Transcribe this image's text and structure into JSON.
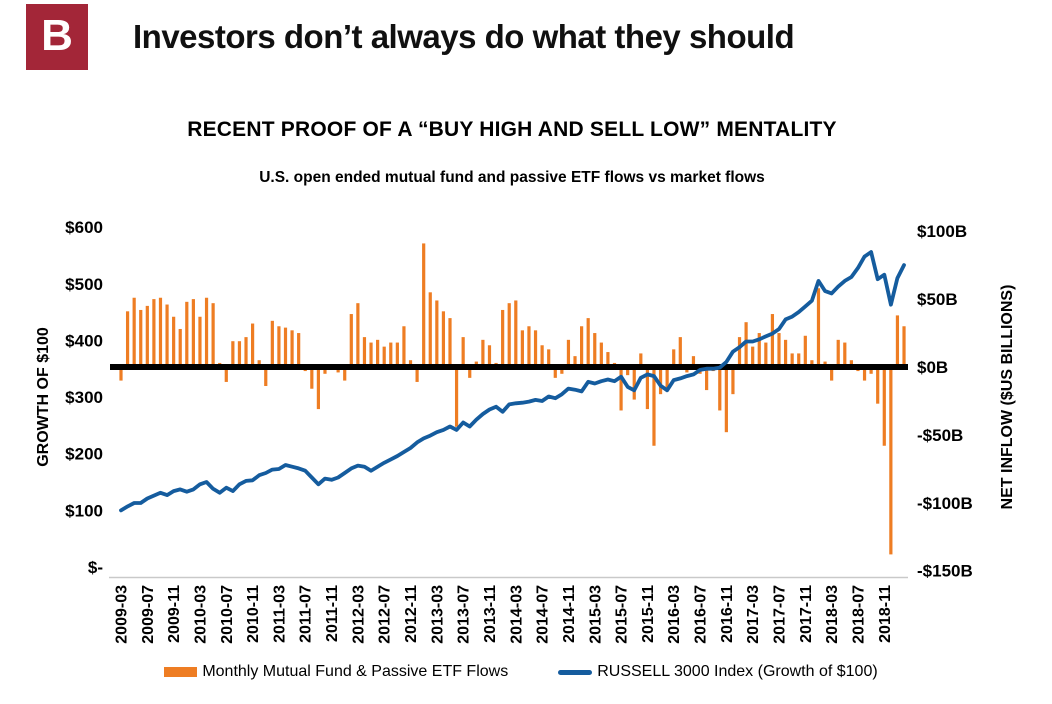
{
  "header": {
    "logo_letter": "B",
    "title": "Investors don’t always do what they should"
  },
  "colors": {
    "logo_red": "#A32638",
    "bar_orange": "#EE7D23",
    "line_blue": "#155C9E",
    "zero_line_black": "#000000",
    "axis_line_gray": "#C9C9C9",
    "text_black": "#000000"
  },
  "chart_data": {
    "type": "combo-bar-line-dual-axis",
    "title": "RECENT PROOF OF A “BUY HIGH AND SELL LOW” MENTALITY",
    "subtitle": "U.S. open ended mutual fund and passive ETF flows vs market flows",
    "x_start": "2009-03",
    "x_frequency": "monthly",
    "n_points": 120,
    "x_axis": {
      "tick_every_n_months": 4,
      "tick_labels": [
        "2009-03",
        "2009-07",
        "2009-11",
        "2010-03",
        "2010-07",
        "2010-11",
        "2011-03",
        "2011-07",
        "2011-11",
        "2012-03",
        "2012-07",
        "2012-11",
        "2013-03",
        "2013-07",
        "2013-11",
        "2014-03",
        "2014-07",
        "2014-11",
        "2015-03",
        "2015-07",
        "2015-11",
        "2016-03",
        "2016-07",
        "2016-11",
        "2017-03",
        "2017-07",
        "2017-11",
        "2018-03",
        "2018-07",
        "2018-11"
      ]
    },
    "left_axis": {
      "title": "GROWTH OF $100",
      "range": [
        0,
        600
      ],
      "tick_labels": [
        "$600",
        "$500",
        "$400",
        "$300",
        "$200",
        "$100",
        "$-"
      ],
      "tick_values": [
        600,
        500,
        400,
        300,
        200,
        100,
        0
      ]
    },
    "right_axis": {
      "title": "NET INFLOW ($US BILLIONS)",
      "range": [
        -150,
        100
      ],
      "tick_labels": [
        "$100B",
        "$50B",
        "$0B",
        "-$50B",
        "-$100B",
        "-$150B"
      ],
      "tick_values": [
        100,
        50,
        0,
        -50,
        -100,
        -150
      ]
    },
    "zero_line_right_axis_value": 0,
    "legend_position": "bottom",
    "series": [
      {
        "name": "Monthly Mutual Fund & Passive ETF Flows",
        "type": "bar",
        "axis": "right",
        "color": "#EE7D23",
        "values": [
          -10,
          41,
          51,
          42,
          45,
          50,
          51,
          46,
          37,
          28,
          48,
          50,
          37,
          51,
          47,
          3,
          -11,
          19,
          19,
          22,
          32,
          5,
          -14,
          34,
          30,
          29,
          27,
          25,
          -3,
          -16,
          -31,
          -5,
          2,
          -4,
          -10,
          39,
          47,
          22,
          18,
          20,
          15,
          18,
          18,
          30,
          5,
          -11,
          91,
          55,
          49,
          41,
          36,
          -44,
          22,
          -8,
          4,
          20,
          16,
          3,
          42,
          47,
          49,
          27,
          30,
          27,
          16,
          13,
          -8,
          -5,
          20,
          8,
          30,
          36,
          25,
          18,
          11,
          3,
          -32,
          -6,
          -24,
          10,
          -31,
          -58,
          -20,
          -18,
          13,
          22,
          -4,
          8,
          -5,
          -17,
          -3,
          -32,
          -48,
          -20,
          22,
          33,
          15,
          25,
          18,
          39,
          25,
          20,
          10,
          10,
          23,
          5,
          58,
          4,
          -10,
          20,
          18,
          5,
          -3,
          -10,
          -5,
          -27,
          -58,
          -138,
          38,
          30
        ]
      },
      {
        "name": "RUSSELL 3000 Index (Growth of $100)",
        "type": "line",
        "axis": "left",
        "color": "#155C9E",
        "values": [
          100,
          107,
          113,
          113,
          121,
          126,
          131,
          127,
          134,
          137,
          133,
          137,
          146,
          150,
          138,
          131,
          140,
          134,
          146,
          152,
          153,
          162,
          166,
          172,
          173,
          180,
          177,
          174,
          170,
          158,
          146,
          156,
          154,
          158,
          166,
          174,
          179,
          177,
          170,
          177,
          184,
          190,
          196,
          203,
          210,
          220,
          227,
          232,
          238,
          242,
          248,
          242,
          255,
          248,
          260,
          270,
          278,
          283,
          274,
          287,
          289,
          290,
          292,
          295,
          293,
          301,
          298,
          305,
          315,
          313,
          310,
          327,
          324,
          328,
          331,
          328,
          336,
          318,
          312,
          334,
          340,
          337,
          320,
          312,
          330,
          333,
          337,
          340,
          348,
          350,
          350,
          352,
          362,
          380,
          388,
          398,
          398,
          402,
          407,
          412,
          420,
          437,
          442,
          450,
          460,
          470,
          505,
          487,
          483,
          495,
          505,
          512,
          528,
          548,
          556,
          508,
          516,
          463,
          510,
          533
        ]
      }
    ]
  }
}
